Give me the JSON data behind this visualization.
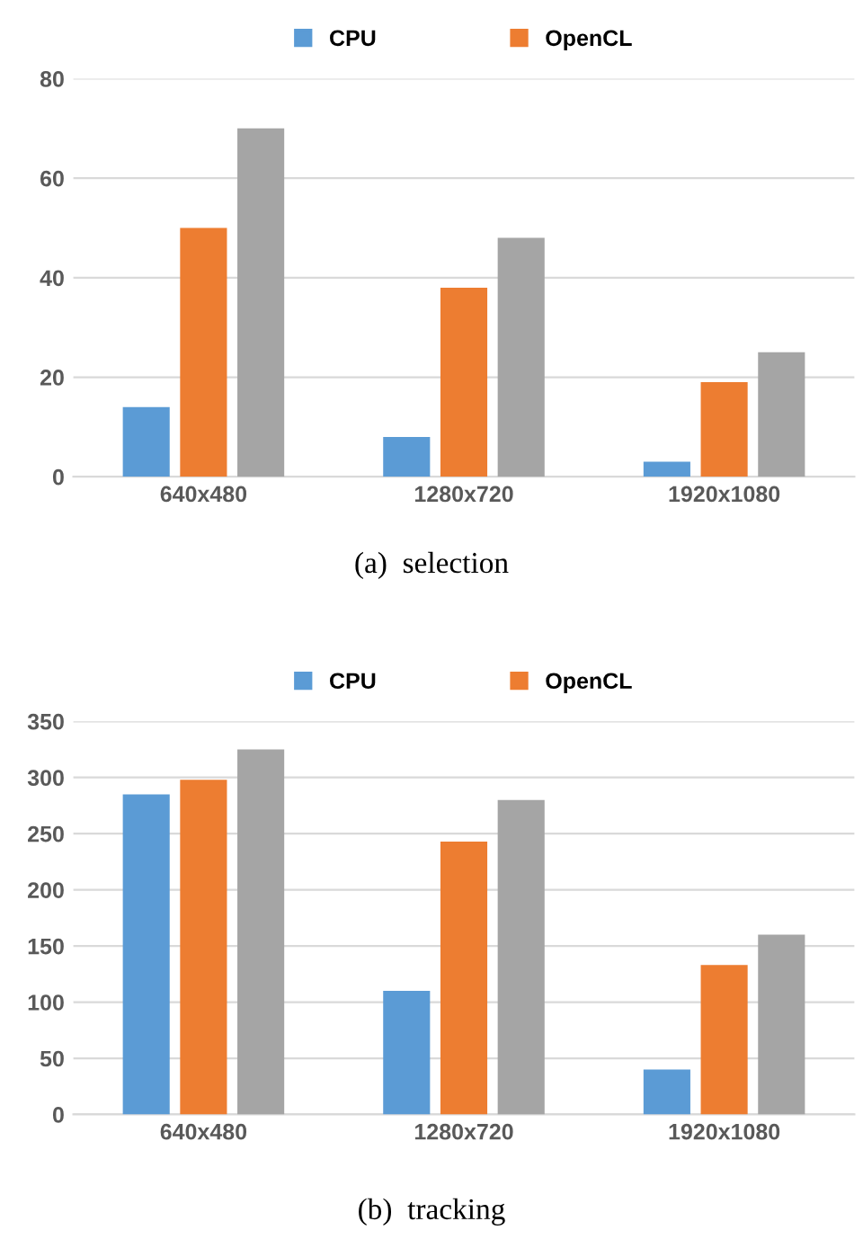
{
  "chart_data": [
    {
      "type": "bar",
      "categories": [
        "640x480",
        "1280x720",
        "1920x1080"
      ],
      "series": [
        {
          "name": "CPU",
          "color": "#5b9bd5",
          "values": [
            14,
            8,
            3
          ]
        },
        {
          "name": "OpenCL",
          "color": "#ed7d31",
          "values": [
            50,
            38,
            19
          ]
        },
        {
          "color": "#a5a5a5",
          "values": [
            70,
            48,
            25
          ]
        }
      ],
      "ylim": [
        0,
        80
      ],
      "yticks": [
        0,
        20,
        40,
        60,
        80
      ],
      "grid": "y",
      "legend": "top",
      "annotations": [
        "(a)  selection"
      ]
    },
    {
      "type": "bar",
      "categories": [
        "640x480",
        "1280x720",
        "1920x1080"
      ],
      "series": [
        {
          "name": "CPU",
          "color": "#5b9bd5",
          "values": [
            285,
            110,
            40
          ]
        },
        {
          "name": "OpenCL",
          "color": "#ed7d31",
          "values": [
            298,
            243,
            133
          ]
        },
        {
          "color": "#a5a5a5",
          "values": [
            325,
            280,
            160
          ]
        }
      ],
      "ylim": [
        0,
        350
      ],
      "yticks": [
        0,
        50,
        100,
        150,
        200,
        250,
        300,
        350
      ],
      "grid": "y",
      "legend": "top",
      "annotations": [
        "(b)  tracking"
      ]
    }
  ]
}
